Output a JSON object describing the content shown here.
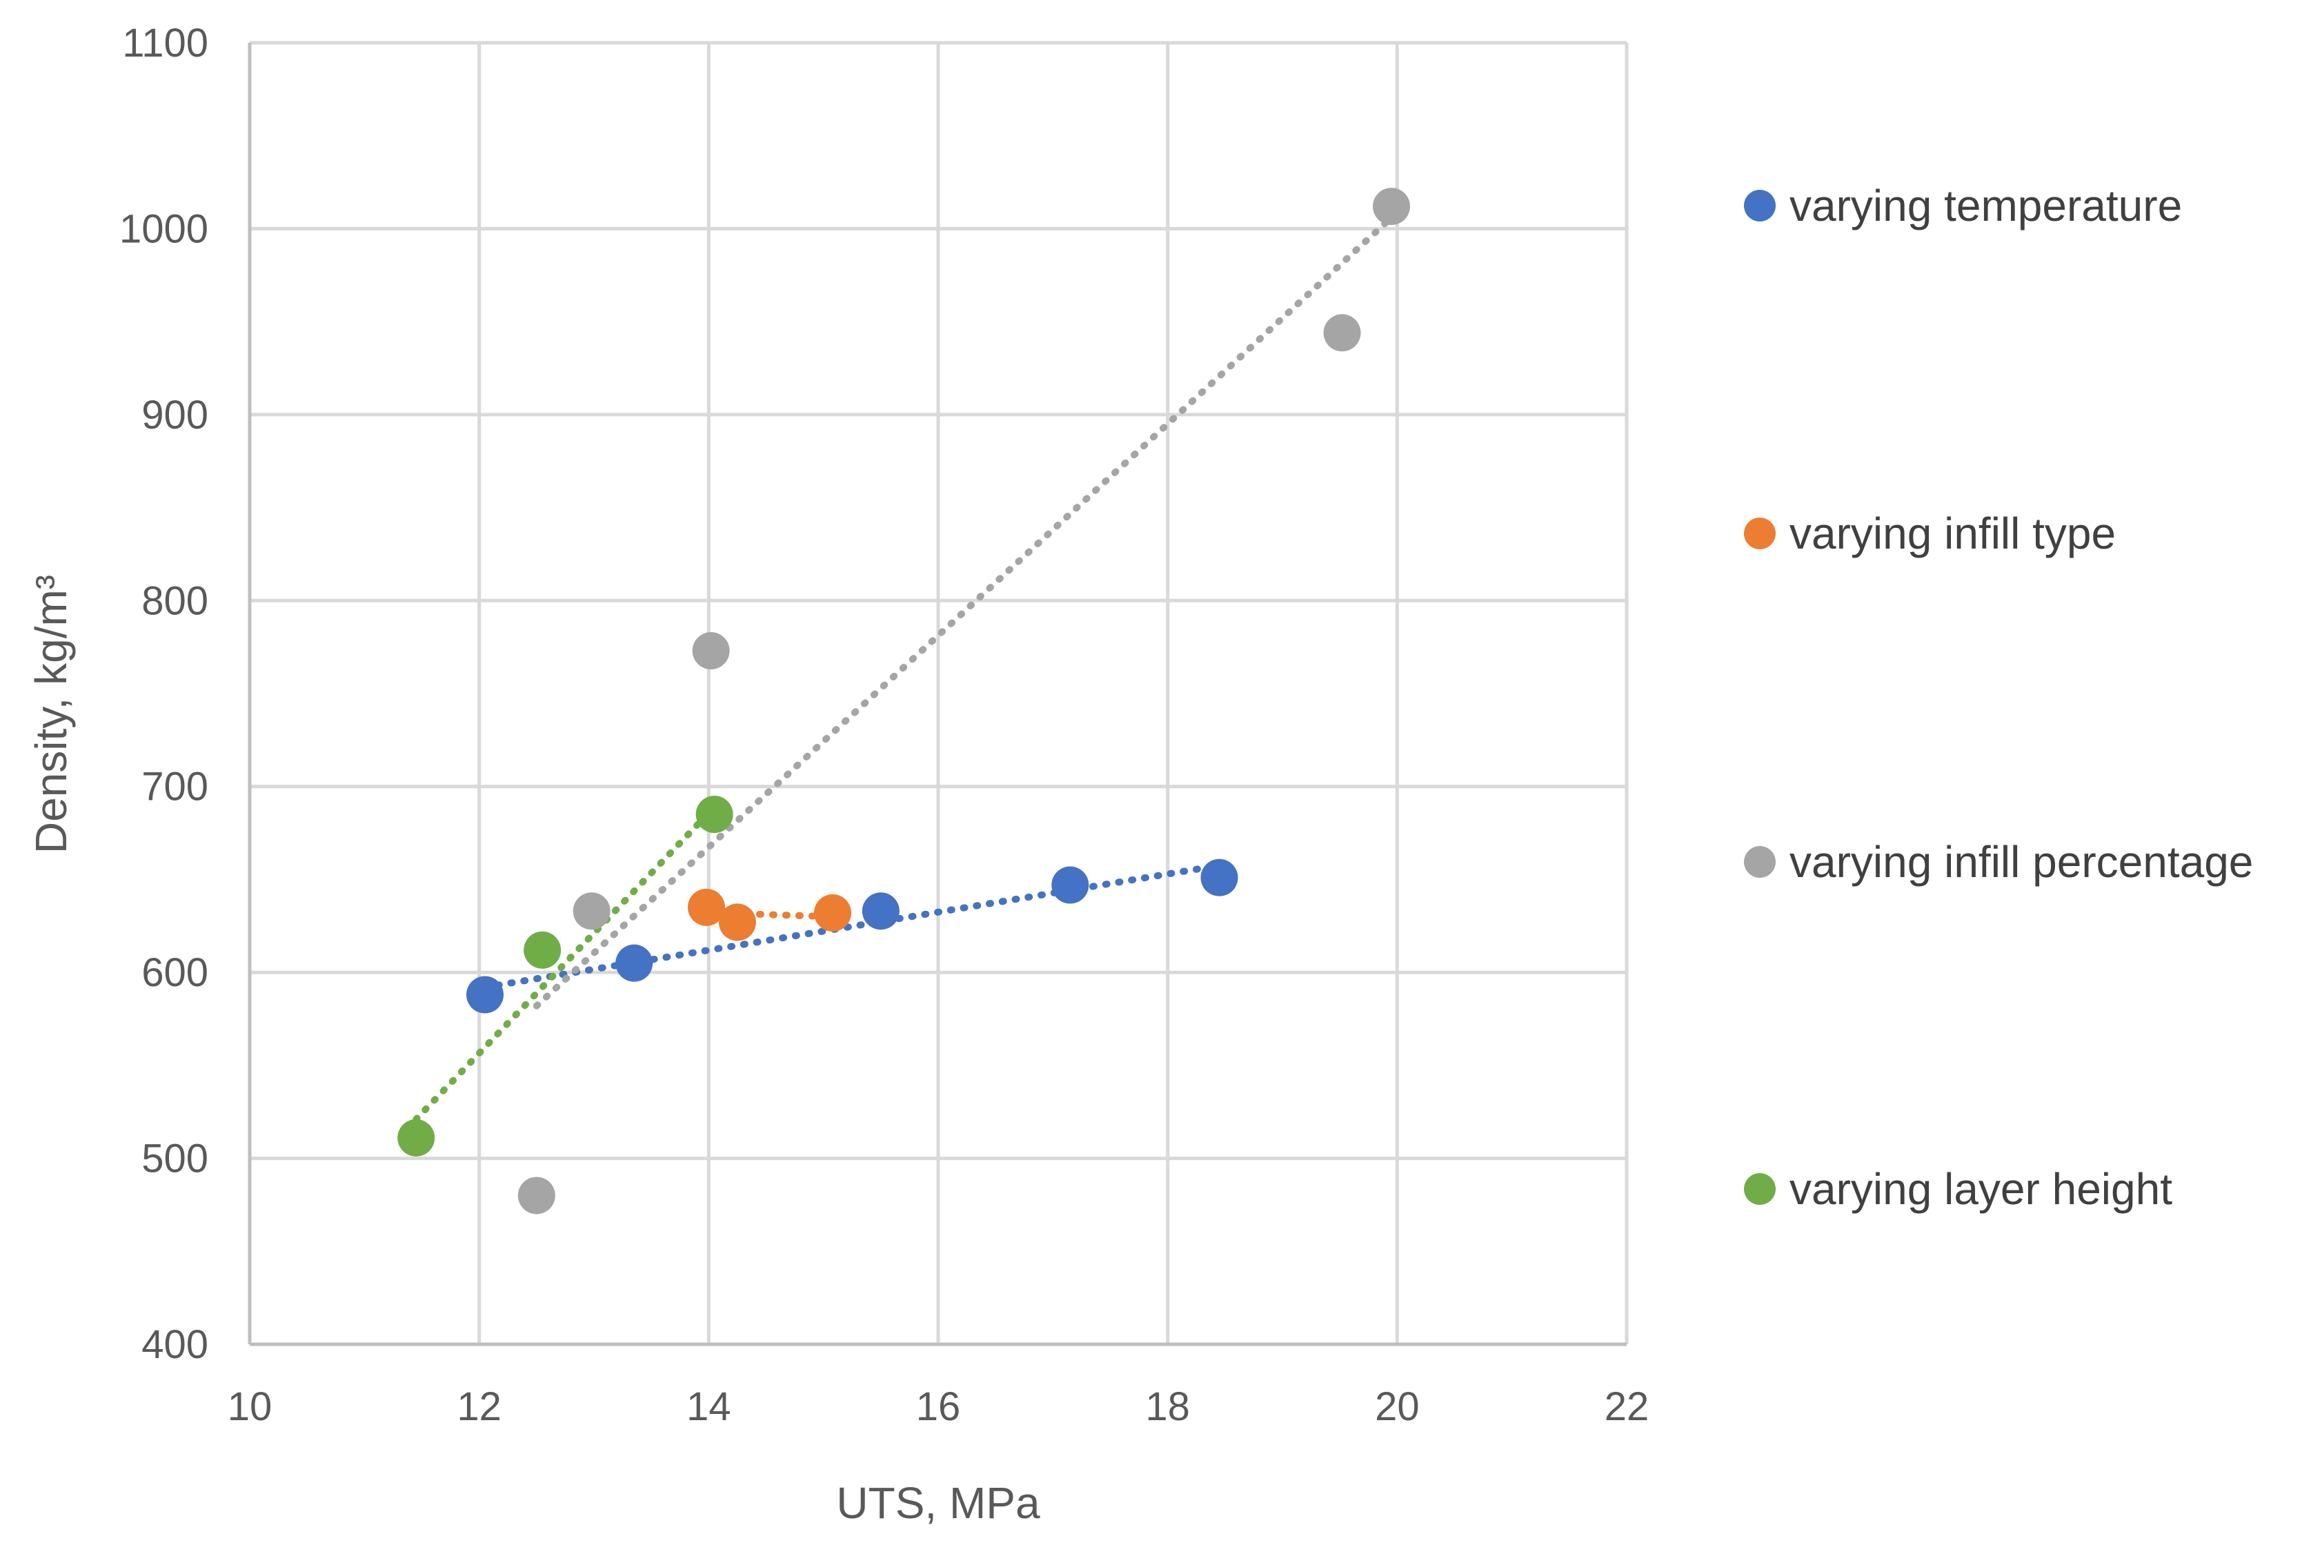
{
  "chart_data": {
    "type": "scatter",
    "title": "",
    "xlabel": "UTS, MPa",
    "ylabel": "Density, kg/m³",
    "xlim": [
      10,
      22
    ],
    "ylim": [
      400,
      1100
    ],
    "xticks": [
      10,
      12,
      14,
      16,
      18,
      20,
      22
    ],
    "yticks": [
      400,
      500,
      600,
      700,
      800,
      900,
      1000,
      1100
    ],
    "grid": true,
    "legend_position": "right",
    "series": [
      {
        "name": "varying temperature",
        "color": "#4472C4",
        "points": [
          [
            12.05,
            588
          ],
          [
            13.35,
            605
          ],
          [
            15.5,
            633
          ],
          [
            17.15,
            647
          ],
          [
            18.45,
            651
          ]
        ],
        "trendline": [
          [
            12.05,
            592
          ],
          [
            18.4,
            657
          ]
        ]
      },
      {
        "name": "varying infill type",
        "color": "#ED7D31",
        "points": [
          [
            13.98,
            635
          ],
          [
            14.25,
            627
          ],
          [
            15.08,
            632
          ]
        ],
        "trendline": [
          [
            14.1,
            632
          ],
          [
            15.05,
            630
          ]
        ]
      },
      {
        "name": "varying infill percentage",
        "color": "#A5A5A5",
        "points": [
          [
            12.5,
            480
          ],
          [
            12.98,
            633
          ],
          [
            14.02,
            773
          ],
          [
            19.52,
            944
          ],
          [
            19.95,
            1012
          ]
        ],
        "trendline": [
          [
            12.5,
            582
          ],
          [
            19.95,
            1006
          ]
        ]
      },
      {
        "name": "varying layer height",
        "color": "#70AD47",
        "points": [
          [
            11.45,
            511
          ],
          [
            12.55,
            612
          ],
          [
            14.05,
            685
          ]
        ],
        "trendline": [
          [
            11.45,
            521
          ],
          [
            14.05,
            689
          ]
        ]
      }
    ]
  }
}
